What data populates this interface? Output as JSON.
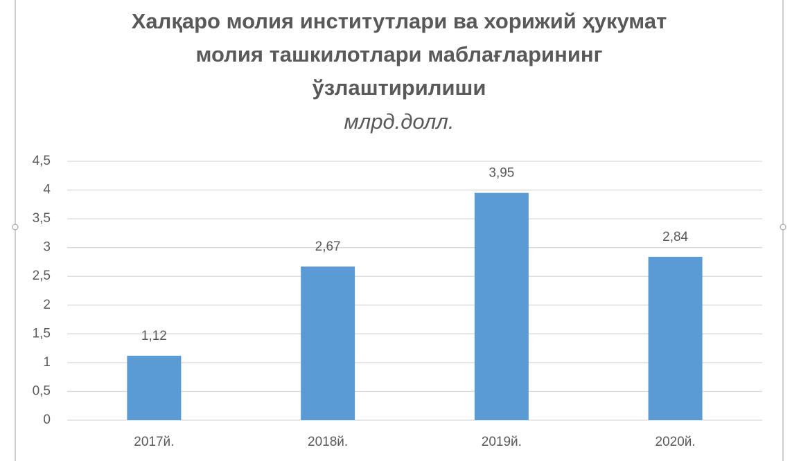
{
  "chart_data": {
    "type": "bar",
    "title": [
      "Халқаро молия институтлари ва хорижий ҳукумат",
      "молия ташкилотлари маблағларининг",
      "ўзлаштирилиши"
    ],
    "subtitle": "млрд.долл.",
    "categories": [
      "2017й.",
      "2018й.",
      "2019й.",
      "2020й."
    ],
    "values": [
      1.12,
      2.67,
      3.95,
      2.84
    ],
    "value_labels": [
      "1,12",
      "2,67",
      "3,95",
      "2,84"
    ],
    "color": "#5b9bd5",
    "ylim": [
      0,
      4.5
    ],
    "yticks": [
      0,
      {
        "value": 0.5,
        "label": "0,5"
      },
      1,
      {
        "value": 1.5,
        "label": "1,5"
      },
      2,
      {
        "value": 2.5,
        "label": "2,5"
      },
      3,
      {
        "value": 3.5,
        "label": "3,5"
      },
      4,
      {
        "value": 4.5,
        "label": "4,5"
      }
    ],
    "grid": true
  }
}
